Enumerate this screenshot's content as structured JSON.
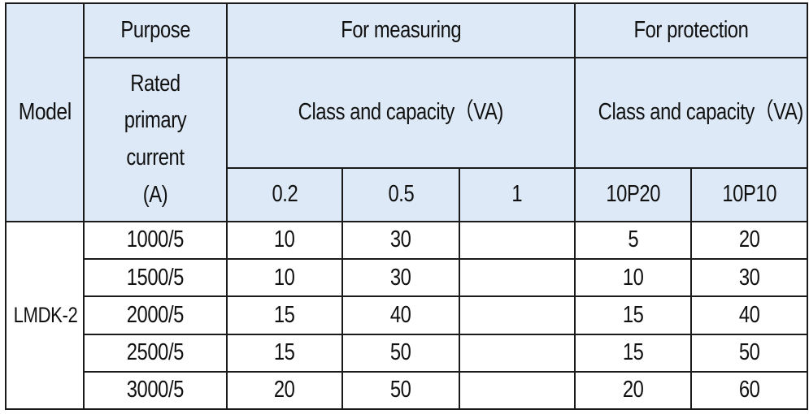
{
  "header": {
    "model": "Model",
    "purpose": "Purpose",
    "for_measuring": "For measuring",
    "for_protection": "For protection",
    "rated_primary_current_lines": [
      "Rated primary",
      "current",
      "(A)"
    ],
    "measuring_class_capacity": "Class and capacity（VA)",
    "protection_class_capacity": "Class and capacity（VA)",
    "measuring_classes": [
      "0.2",
      "0.5",
      "1"
    ],
    "protection_classes": [
      "10P20",
      "10P10"
    ]
  },
  "model_name": "LMDK-2",
  "rows": [
    {
      "current": "1000/5",
      "m02": "10",
      "m05": "30",
      "m1": "",
      "p10p20": "5",
      "p10p10": "20"
    },
    {
      "current": "1500/5",
      "m02": "10",
      "m05": "30",
      "m1": "",
      "p10p20": "10",
      "p10p10": "30"
    },
    {
      "current": "2000/5",
      "m02": "15",
      "m05": "40",
      "m1": "",
      "p10p20": "15",
      "p10p10": "40"
    },
    {
      "current": "2500/5",
      "m02": "15",
      "m05": "50",
      "m1": "",
      "p10p20": "15",
      "p10p10": "50"
    },
    {
      "current": "3000/5",
      "m02": "20",
      "m05": "50",
      "m1": "",
      "p10p20": "20",
      "p10p10": "60"
    }
  ]
}
